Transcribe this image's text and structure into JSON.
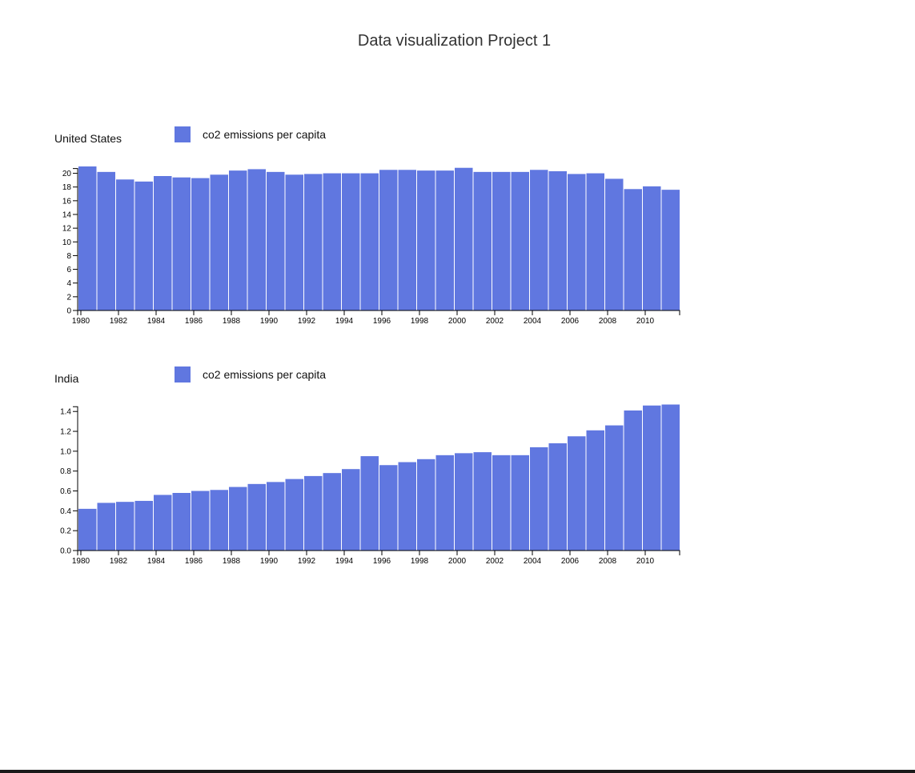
{
  "page": {
    "title": "Data visualization Project 1"
  },
  "colors": {
    "bar": "#6077e0",
    "axis": "#000000"
  },
  "chart_data": [
    {
      "type": "bar",
      "title": "United States",
      "legend": "co2 emissions per capita",
      "ylim": [
        0,
        21
      ],
      "yticks": [
        0,
        2,
        4,
        6,
        8,
        10,
        12,
        14,
        16,
        18,
        20
      ],
      "ytick_format": "int",
      "xlim": [
        1980,
        2012
      ],
      "xticks": [
        "1980",
        "1982",
        "1984",
        "1986",
        "1988",
        "1990",
        "1992",
        "1994",
        "1996",
        "1998",
        "2000",
        "2002",
        "2004",
        "2006",
        "2008",
        "2010"
      ],
      "categories": [
        1980,
        1981,
        1982,
        1983,
        1984,
        1985,
        1986,
        1987,
        1988,
        1989,
        1990,
        1991,
        1992,
        1993,
        1994,
        1995,
        1996,
        1997,
        1998,
        1999,
        2000,
        2001,
        2002,
        2003,
        2004,
        2005,
        2006,
        2007,
        2008,
        2009,
        2010,
        2011
      ],
      "values": [
        21.0,
        20.2,
        19.1,
        18.8,
        19.6,
        19.4,
        19.3,
        19.8,
        20.4,
        20.6,
        20.2,
        19.8,
        19.9,
        20.0,
        20.0,
        20.0,
        20.5,
        20.5,
        20.4,
        20.4,
        20.8,
        20.2,
        20.2,
        20.2,
        20.5,
        20.3,
        19.9,
        20.0,
        19.2,
        17.7,
        18.1,
        17.6
      ]
    },
    {
      "type": "bar",
      "title": "India",
      "legend": "co2 emissions per capita",
      "ylim": [
        0,
        1.45
      ],
      "yticks": [
        0.0,
        0.2,
        0.4,
        0.6,
        0.8,
        1.0,
        1.2,
        1.4
      ],
      "ytick_format": "fixed1",
      "xlim": [
        1980,
        2012
      ],
      "xticks": [
        "1980",
        "1982",
        "1984",
        "1986",
        "1988",
        "1990",
        "1992",
        "1994",
        "1996",
        "1998",
        "2000",
        "2002",
        "2004",
        "2006",
        "2008",
        "2010"
      ],
      "categories": [
        1980,
        1981,
        1982,
        1983,
        1984,
        1985,
        1986,
        1987,
        1988,
        1989,
        1990,
        1991,
        1992,
        1993,
        1994,
        1995,
        1996,
        1997,
        1998,
        1999,
        2000,
        2001,
        2002,
        2003,
        2004,
        2005,
        2006,
        2007,
        2008,
        2009,
        2010,
        2011
      ],
      "values": [
        0.42,
        0.48,
        0.49,
        0.5,
        0.56,
        0.58,
        0.6,
        0.61,
        0.64,
        0.67,
        0.69,
        0.72,
        0.75,
        0.78,
        0.82,
        0.95,
        0.86,
        0.89,
        0.92,
        0.96,
        0.98,
        0.99,
        0.96,
        0.96,
        1.04,
        1.08,
        1.15,
        1.21,
        1.26,
        1.41,
        1.46,
        1.47
      ]
    }
  ]
}
